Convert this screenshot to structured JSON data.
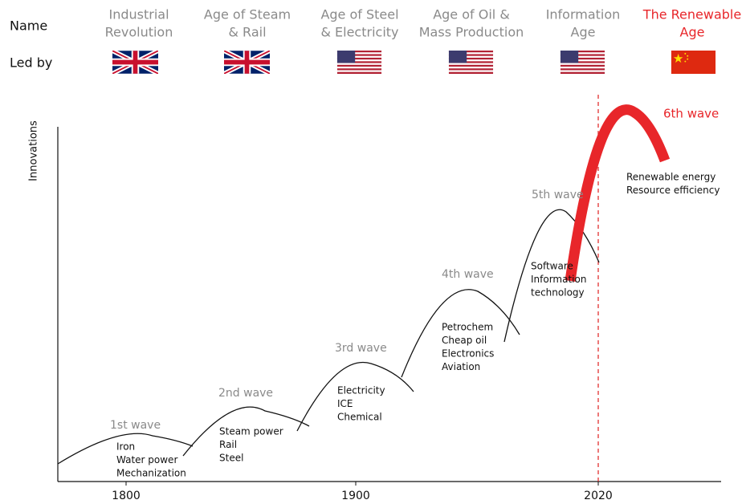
{
  "header": {
    "row_labels": [
      "Name",
      "Led by"
    ],
    "eras": [
      {
        "name": [
          "Industrial",
          "Revolution"
        ]
      },
      {
        "name": [
          "Age of Steam",
          "& Rail"
        ]
      },
      {
        "name": [
          "Age of Steel",
          "& Electricity"
        ]
      },
      {
        "name": [
          "Age of Oil &",
          "Mass Production"
        ]
      },
      {
        "name": [
          "Information",
          "Age"
        ]
      },
      {
        "name": [
          "The Renewable",
          "Age"
        ]
      }
    ]
  },
  "axis": {
    "y_label": "Innovations",
    "x_ticks": [
      "1800",
      "1900",
      "2020"
    ]
  },
  "waves": [
    {
      "label": "1st wave",
      "innovations": [
        "Iron",
        "Water power",
        "Mechanization"
      ]
    },
    {
      "label": "2nd wave",
      "innovations": [
        "Steam power",
        "Rail",
        "Steel"
      ]
    },
    {
      "label": "3rd wave",
      "innovations": [
        "Electricity",
        "ICE",
        "Chemical"
      ]
    },
    {
      "label": "4th wave",
      "innovations": [
        "Petrochem",
        "Cheap oil",
        "Electronics",
        "Aviation"
      ]
    },
    {
      "label": "5th wave",
      "innovations": [
        "Software",
        "Information",
        "technology"
      ]
    },
    {
      "label": "6th wave",
      "innovations": [
        "Renewable energy",
        "Resource efficiency"
      ]
    }
  ]
}
